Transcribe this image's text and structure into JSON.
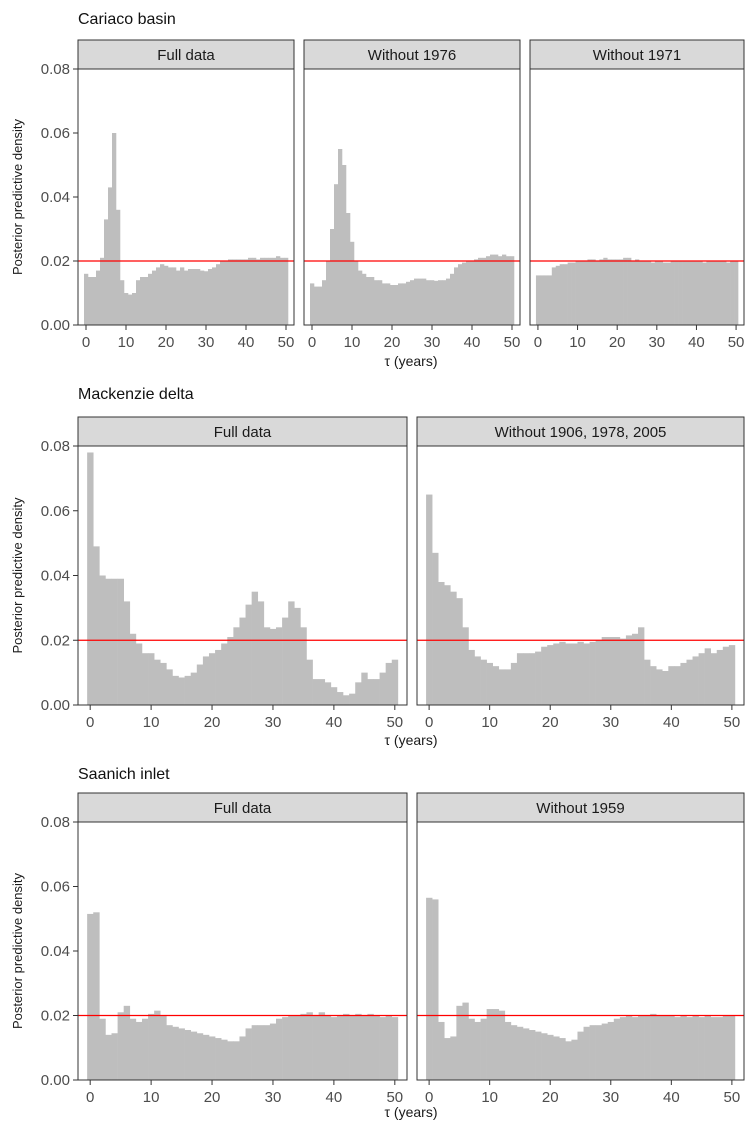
{
  "figure": {
    "reference_line_color": "#ff0000",
    "bar_color": "#bebebe",
    "strip_fill": "#d9d9d9"
  },
  "rows": [
    {
      "title": "Cariaco basin",
      "ylabel": "Posterior predictive density",
      "xlabel": "τ (years)",
      "yticks": [
        "0.00",
        "0.02",
        "0.04",
        "0.06",
        "0.08"
      ],
      "xticks": [
        "0",
        "10",
        "20",
        "30",
        "40",
        "50"
      ],
      "panels": [
        {
          "strip": "Full data"
        },
        {
          "strip": "Without 1976"
        },
        {
          "strip": "Without 1971"
        }
      ]
    },
    {
      "title": "Mackenzie delta",
      "ylabel": "Posterior predictive density",
      "xlabel": "τ (years)",
      "yticks": [
        "0.00",
        "0.02",
        "0.04",
        "0.06",
        "0.08"
      ],
      "xticks": [
        "0",
        "10",
        "20",
        "30",
        "40",
        "50"
      ],
      "panels": [
        {
          "strip": "Full data"
        },
        {
          "strip": "Without 1906, 1978, 2005"
        }
      ]
    },
    {
      "title": "Saanich inlet",
      "ylabel": "Posterior predictive density",
      "xlabel": "τ (years)",
      "yticks": [
        "0.00",
        "0.02",
        "0.04",
        "0.06",
        "0.08"
      ],
      "xticks": [
        "0",
        "10",
        "20",
        "30",
        "40",
        "50"
      ],
      "panels": [
        {
          "strip": "Full data"
        },
        {
          "strip": "Without 1959"
        }
      ]
    }
  ],
  "chart_data": [
    {
      "type": "bar",
      "title": "Cariaco basin",
      "panel": "Full data",
      "xlabel": "τ (years)",
      "ylabel": "Posterior predictive density",
      "xlim": [
        -2,
        52
      ],
      "ylim": [
        0,
        0.08
      ],
      "bin_start": -0.5,
      "bin_width": 1,
      "reference_line": 0.02,
      "values": [
        0.016,
        0.015,
        0.015,
        0.017,
        0.021,
        0.033,
        0.043,
        0.06,
        0.036,
        0.014,
        0.01,
        0.0095,
        0.01,
        0.014,
        0.015,
        0.015,
        0.016,
        0.017,
        0.018,
        0.019,
        0.0185,
        0.018,
        0.018,
        0.017,
        0.018,
        0.017,
        0.0175,
        0.0175,
        0.0175,
        0.017,
        0.0168,
        0.0175,
        0.018,
        0.019,
        0.02,
        0.02,
        0.0205,
        0.0205,
        0.0205,
        0.0205,
        0.0205,
        0.021,
        0.021,
        0.0205,
        0.021,
        0.021,
        0.021,
        0.021,
        0.0215,
        0.021,
        0.021
      ]
    },
    {
      "type": "bar",
      "title": "Cariaco basin",
      "panel": "Without 1976",
      "xlabel": "τ (years)",
      "ylabel": "Posterior predictive density",
      "xlim": [
        -2,
        52
      ],
      "ylim": [
        0,
        0.08
      ],
      "bin_start": -0.5,
      "bin_width": 1,
      "reference_line": 0.02,
      "values": [
        0.013,
        0.012,
        0.012,
        0.014,
        0.02,
        0.03,
        0.044,
        0.055,
        0.05,
        0.035,
        0.026,
        0.02,
        0.017,
        0.016,
        0.015,
        0.015,
        0.014,
        0.014,
        0.013,
        0.013,
        0.0125,
        0.0125,
        0.013,
        0.013,
        0.0135,
        0.014,
        0.0145,
        0.0145,
        0.0145,
        0.014,
        0.014,
        0.0138,
        0.014,
        0.014,
        0.0145,
        0.016,
        0.018,
        0.019,
        0.0195,
        0.02,
        0.02,
        0.0205,
        0.021,
        0.021,
        0.0215,
        0.022,
        0.022,
        0.0215,
        0.022,
        0.0215,
        0.0215
      ]
    },
    {
      "type": "bar",
      "title": "Cariaco basin",
      "panel": "Without 1971",
      "xlabel": "τ (years)",
      "ylabel": "Posterior predictive density",
      "xlim": [
        -2,
        52
      ],
      "ylim": [
        0,
        0.08
      ],
      "bin_start": -0.5,
      "bin_width": 1,
      "reference_line": 0.02,
      "values": [
        0.0155,
        0.0155,
        0.0155,
        0.0155,
        0.018,
        0.0185,
        0.019,
        0.019,
        0.0195,
        0.0195,
        0.02,
        0.02,
        0.02,
        0.0205,
        0.0205,
        0.02,
        0.0205,
        0.021,
        0.0205,
        0.0205,
        0.0205,
        0.0205,
        0.021,
        0.021,
        0.02,
        0.0205,
        0.02,
        0.02,
        0.02,
        0.0195,
        0.02,
        0.02,
        0.0195,
        0.0195,
        0.02,
        0.02,
        0.02,
        0.02,
        0.02,
        0.02,
        0.02,
        0.02,
        0.0195,
        0.02,
        0.02,
        0.02,
        0.02,
        0.02,
        0.0195,
        0.02,
        0.02
      ]
    },
    {
      "type": "bar",
      "title": "Mackenzie delta",
      "panel": "Full data",
      "xlabel": "τ (years)",
      "ylabel": "Posterior predictive density",
      "xlim": [
        -2,
        52
      ],
      "ylim": [
        0,
        0.08
      ],
      "bin_start": -0.5,
      "bin_width": 1,
      "reference_line": 0.02,
      "values": [
        0.078,
        0.049,
        0.04,
        0.039,
        0.039,
        0.039,
        0.032,
        0.022,
        0.019,
        0.016,
        0.016,
        0.014,
        0.013,
        0.011,
        0.009,
        0.0085,
        0.009,
        0.01,
        0.0125,
        0.015,
        0.016,
        0.017,
        0.019,
        0.021,
        0.024,
        0.027,
        0.031,
        0.035,
        0.032,
        0.024,
        0.0235,
        0.024,
        0.027,
        0.032,
        0.03,
        0.024,
        0.014,
        0.008,
        0.008,
        0.007,
        0.0055,
        0.004,
        0.003,
        0.0035,
        0.007,
        0.01,
        0.008,
        0.008,
        0.01,
        0.013,
        0.014
      ]
    },
    {
      "type": "bar",
      "title": "Mackenzie delta",
      "panel": "Without 1906, 1978, 2005",
      "xlabel": "τ (years)",
      "ylabel": "Posterior predictive density",
      "xlim": [
        -2,
        52
      ],
      "ylim": [
        0,
        0.08
      ],
      "bin_start": -0.5,
      "bin_width": 1,
      "reference_line": 0.02,
      "values": [
        0.065,
        0.047,
        0.038,
        0.037,
        0.035,
        0.033,
        0.024,
        0.017,
        0.015,
        0.014,
        0.013,
        0.012,
        0.011,
        0.011,
        0.013,
        0.016,
        0.016,
        0.016,
        0.0165,
        0.018,
        0.0185,
        0.019,
        0.0195,
        0.019,
        0.019,
        0.0195,
        0.019,
        0.0195,
        0.02,
        0.021,
        0.021,
        0.021,
        0.0205,
        0.0215,
        0.022,
        0.024,
        0.014,
        0.012,
        0.011,
        0.0105,
        0.012,
        0.012,
        0.013,
        0.014,
        0.015,
        0.016,
        0.0175,
        0.016,
        0.017,
        0.018,
        0.0185
      ]
    },
    {
      "type": "bar",
      "title": "Saanich inlet",
      "panel": "Full data",
      "xlabel": "τ (years)",
      "ylabel": "Posterior predictive density",
      "xlim": [
        -2,
        52
      ],
      "ylim": [
        0,
        0.08
      ],
      "bin_start": -0.5,
      "bin_width": 1,
      "reference_line": 0.02,
      "values": [
        0.0515,
        0.052,
        0.019,
        0.014,
        0.0145,
        0.021,
        0.023,
        0.019,
        0.018,
        0.019,
        0.0205,
        0.0215,
        0.02,
        0.017,
        0.0165,
        0.016,
        0.0155,
        0.015,
        0.0145,
        0.014,
        0.0135,
        0.013,
        0.0125,
        0.012,
        0.012,
        0.0135,
        0.016,
        0.017,
        0.017,
        0.017,
        0.0175,
        0.019,
        0.0195,
        0.02,
        0.02,
        0.0205,
        0.021,
        0.02,
        0.021,
        0.02,
        0.0195,
        0.02,
        0.0205,
        0.02,
        0.0205,
        0.02,
        0.0205,
        0.02,
        0.0195,
        0.02,
        0.0195
      ]
    },
    {
      "type": "bar",
      "title": "Saanich inlet",
      "panel": "Without 1959",
      "xlabel": "τ (years)",
      "ylabel": "Posterior predictive density",
      "xlim": [
        -2,
        52
      ],
      "ylim": [
        0,
        0.08
      ],
      "bin_start": -0.5,
      "bin_width": 1,
      "reference_line": 0.02,
      "values": [
        0.0565,
        0.056,
        0.018,
        0.013,
        0.0135,
        0.023,
        0.024,
        0.019,
        0.018,
        0.019,
        0.022,
        0.022,
        0.0215,
        0.018,
        0.017,
        0.0165,
        0.016,
        0.0155,
        0.015,
        0.0145,
        0.014,
        0.0135,
        0.013,
        0.012,
        0.0125,
        0.015,
        0.0165,
        0.017,
        0.017,
        0.0175,
        0.018,
        0.019,
        0.0195,
        0.02,
        0.0195,
        0.02,
        0.02,
        0.0205,
        0.02,
        0.02,
        0.02,
        0.0195,
        0.02,
        0.0195,
        0.02,
        0.0195,
        0.02,
        0.0195,
        0.0195,
        0.02,
        0.02
      ]
    }
  ]
}
